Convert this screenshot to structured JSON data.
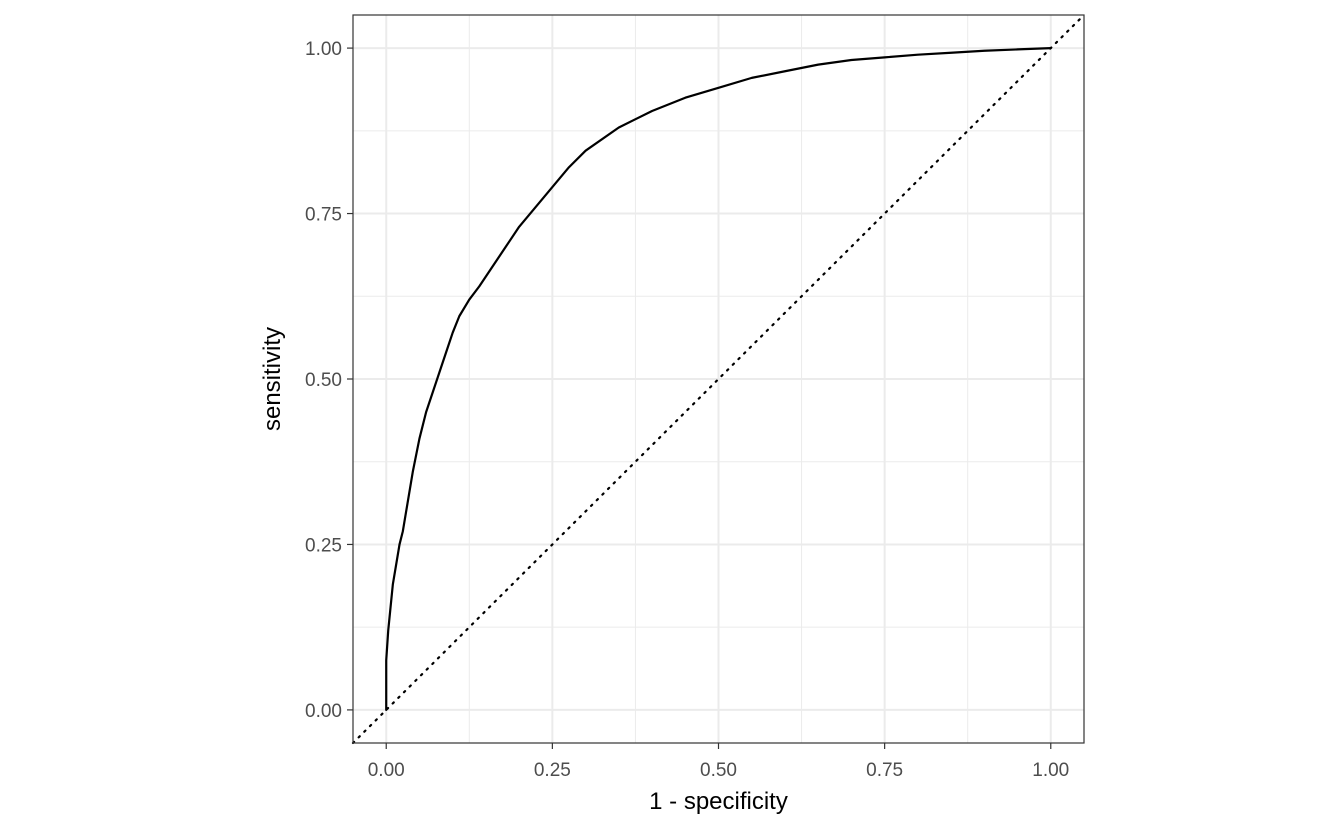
{
  "chart_data": {
    "type": "line",
    "title": "",
    "xlabel": "1 - specificity",
    "ylabel": "sensitivity",
    "xlim": [
      -0.05,
      1.05
    ],
    "ylim": [
      -0.05,
      1.05
    ],
    "x_ticks": [
      0,
      0.25,
      0.5,
      0.75,
      1
    ],
    "y_ticks": [
      0,
      0.25,
      0.5,
      0.75,
      1
    ],
    "x_tick_labels": [
      "0.00",
      "0.25",
      "0.50",
      "0.75",
      "1.00"
    ],
    "y_tick_labels": [
      "0.00",
      "0.25",
      "0.50",
      "0.75",
      "1.00"
    ],
    "grid": true,
    "aspect": "equal",
    "series": [
      {
        "style": "solid",
        "color": "#000000",
        "x": [
          0,
          0,
          0.003,
          0.006,
          0.01,
          0.015,
          0.02,
          0.025,
          0.03,
          0.04,
          0.05,
          0.06,
          0.07,
          0.08,
          0.09,
          0.1,
          0.11,
          0.125,
          0.14,
          0.16,
          0.18,
          0.2,
          0.225,
          0.25,
          0.275,
          0.3,
          0.35,
          0.4,
          0.45,
          0.5,
          0.55,
          0.6,
          0.65,
          0.7,
          0.75,
          0.8,
          0.85,
          0.9,
          0.95,
          1.0
        ],
        "y": [
          0,
          0.075,
          0.12,
          0.15,
          0.19,
          0.22,
          0.25,
          0.27,
          0.3,
          0.36,
          0.41,
          0.45,
          0.48,
          0.51,
          0.54,
          0.57,
          0.595,
          0.62,
          0.64,
          0.67,
          0.7,
          0.73,
          0.76,
          0.79,
          0.82,
          0.845,
          0.88,
          0.905,
          0.925,
          0.94,
          0.955,
          0.965,
          0.975,
          0.982,
          0.986,
          0.99,
          0.993,
          0.996,
          0.998,
          1.0
        ]
      },
      {
        "style": "dotted",
        "color": "#000000",
        "x": [
          -0.05,
          1.05
        ],
        "y": [
          -0.05,
          1.05
        ]
      }
    ]
  }
}
